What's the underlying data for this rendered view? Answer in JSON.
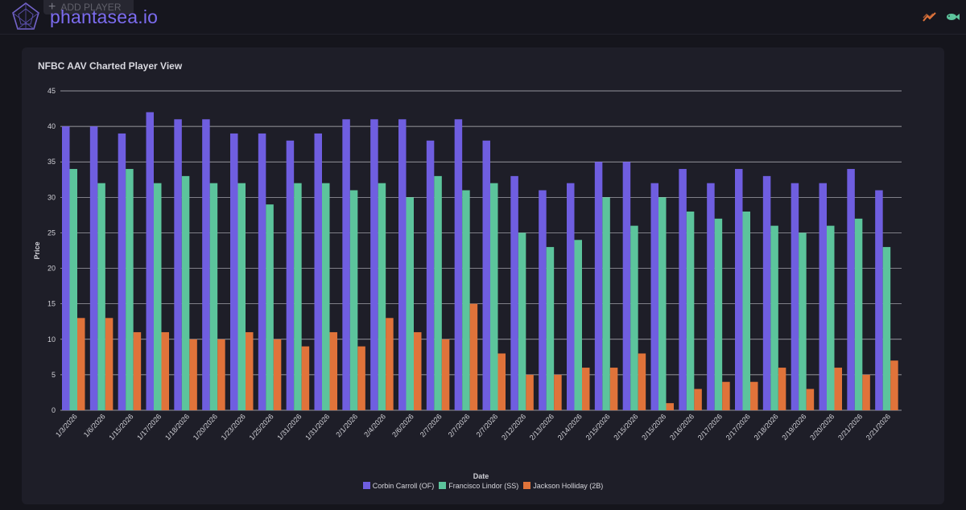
{
  "app": {
    "brand": "phantasea.io",
    "add_player_label": "ADD PLAYER",
    "icons": [
      "phantasea-logo-icon",
      "trend-chart-icon",
      "fish-icon"
    ]
  },
  "chart_data": {
    "type": "bar",
    "title": "NFBC AAV Charted Player View",
    "xlabel": "Date",
    "ylabel": "Price",
    "ylim": [
      0,
      45
    ],
    "yticks": [
      0,
      5,
      10,
      15,
      20,
      25,
      30,
      35,
      40,
      45
    ],
    "grid": true,
    "legend_position": "bottom",
    "categories": [
      "1/3/2026",
      "1/6/2026",
      "1/15/2026",
      "1/17/2026",
      "1/18/2026",
      "1/20/2026",
      "1/23/2026",
      "1/25/2026",
      "1/31/2026",
      "1/31/2026",
      "2/1/2026",
      "2/4/2026",
      "2/6/2026",
      "2/7/2026",
      "2/7/2026",
      "2/7/2026",
      "2/12/2026",
      "2/13/2026",
      "2/14/2026",
      "2/15/2026",
      "2/15/2026",
      "2/15/2026",
      "2/16/2026",
      "2/17/2026",
      "2/17/2026",
      "2/18/2026",
      "2/19/2026",
      "2/20/2026",
      "2/21/2026",
      "2/21/2026"
    ],
    "series": [
      {
        "name": "Corbin Carroll (OF)",
        "color": "#6f5ee0",
        "values": [
          40,
          40,
          39,
          42,
          41,
          41,
          39,
          39,
          38,
          39,
          41,
          41,
          41,
          38,
          41,
          38,
          33,
          31,
          32,
          35,
          35,
          32,
          34,
          32,
          34,
          33,
          32,
          32,
          34,
          31
        ]
      },
      {
        "name": "Francisco Lindor (SS)",
        "color": "#5cc49c",
        "values": [
          34,
          32,
          34,
          32,
          33,
          32,
          32,
          29,
          32,
          32,
          31,
          32,
          30,
          33,
          31,
          32,
          25,
          23,
          24,
          30,
          26,
          30,
          28,
          27,
          28,
          26,
          25,
          26,
          27,
          23
        ]
      },
      {
        "name": "Jackson Holliday (2B)",
        "color": "#e0733a",
        "values": [
          13,
          13,
          11,
          11,
          10,
          10,
          11,
          10,
          9,
          11,
          9,
          13,
          11,
          10,
          15,
          8,
          5,
          5,
          6,
          6,
          8,
          1,
          3,
          4,
          4,
          6,
          3,
          6,
          5,
          7
        ]
      }
    ]
  }
}
